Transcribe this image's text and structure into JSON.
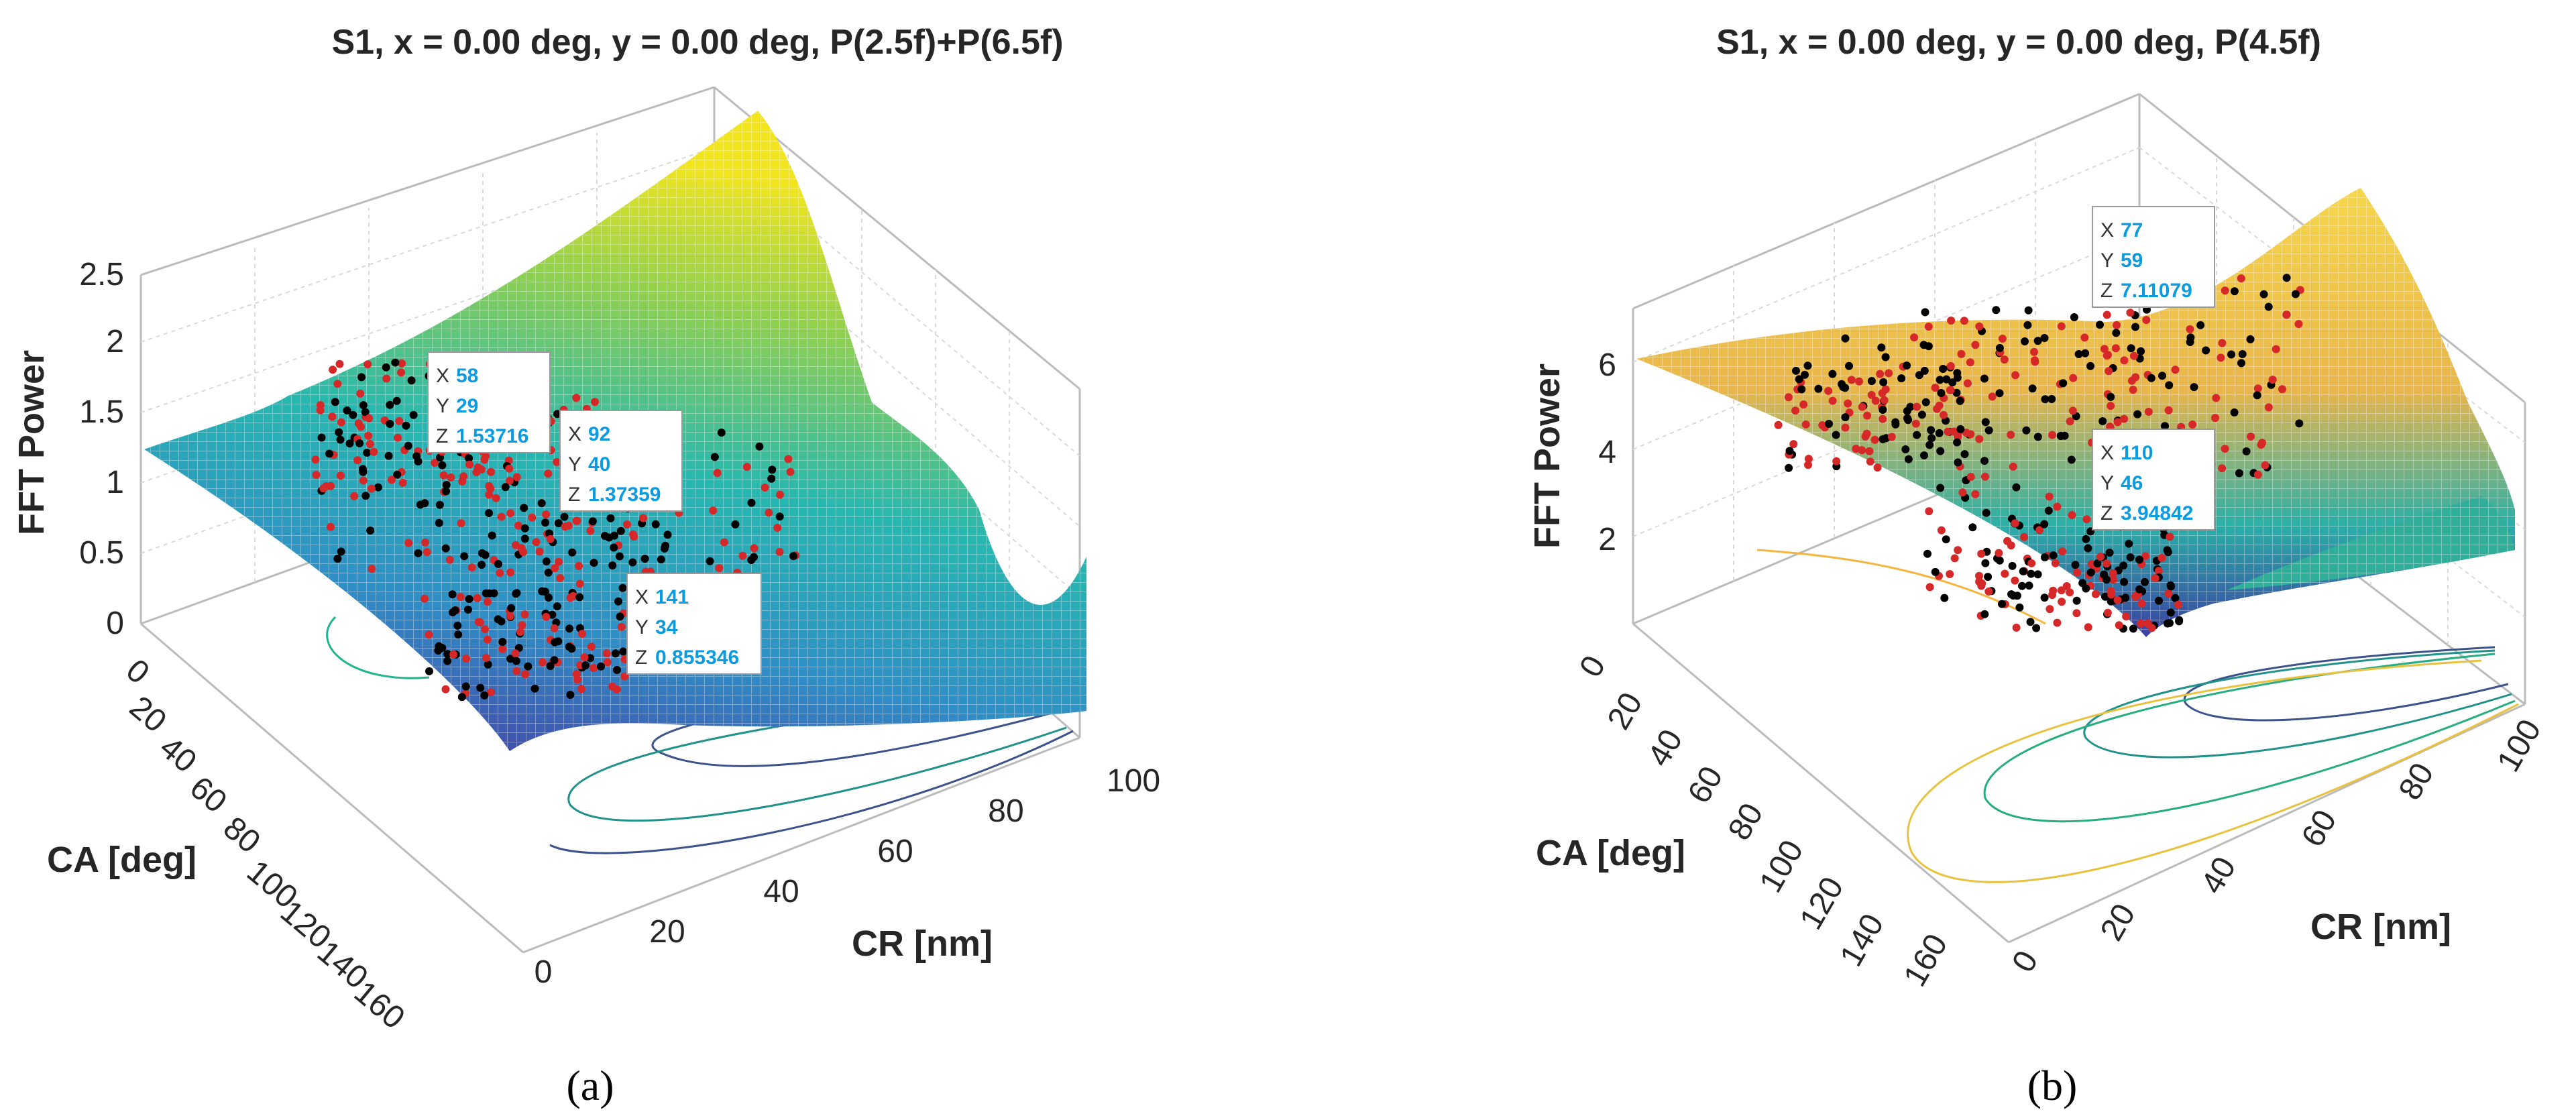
{
  "chart_data": [
    {
      "type": "surface",
      "panel": "a",
      "caption": "(a)",
      "title": "S1, x = 0.00 deg, y = 0.00 deg, P(2.5f)+P(6.5f)",
      "xlabel": "CR [nm]",
      "ylabel": "CA [deg]",
      "zlabel": "FFT Power",
      "x_ticks": [
        "0",
        "20",
        "40",
        "60",
        "80",
        "100"
      ],
      "y_ticks": [
        "0",
        "20",
        "40",
        "60",
        "80",
        "100",
        "120",
        "140",
        "160"
      ],
      "z_ticks": [
        "0",
        "0.5",
        "1",
        "1.5",
        "2",
        "2.5"
      ],
      "xlim": [
        0,
        100
      ],
      "ylim": [
        0,
        180
      ],
      "zlim": [
        0,
        2.6
      ],
      "colormap": [
        "#440154",
        "#3b528b",
        "#21918c",
        "#5ec962",
        "#fde725"
      ],
      "scatter_colors": [
        "#d62828",
        "#000000"
      ],
      "datatips": [
        {
          "X": "58",
          "Y": "29",
          "Z": "1.53716"
        },
        {
          "X": "92",
          "Y": "40",
          "Z": "1.37359"
        },
        {
          "X": "141",
          "Y": "34",
          "Z": "0.855346"
        }
      ]
    },
    {
      "type": "surface",
      "panel": "b",
      "caption": "(b)",
      "title": "S1, x = 0.00 deg, y = 0.00 deg, P(4.5f)",
      "xlabel": "CR [nm]",
      "ylabel": "CA [deg]",
      "zlabel": "FFT Power",
      "x_ticks": [
        "0",
        "20",
        "40",
        "60",
        "80",
        "100"
      ],
      "y_ticks": [
        "0",
        "20",
        "40",
        "60",
        "80",
        "100",
        "120",
        "140",
        "160"
      ],
      "z_ticks": [
        "2",
        "4",
        "6"
      ],
      "xlim": [
        0,
        100
      ],
      "ylim": [
        0,
        180
      ],
      "zlim": [
        0,
        7.2
      ],
      "colormap": [
        "#440154",
        "#3b528b",
        "#21918c",
        "#5ec962",
        "#fde725"
      ],
      "scatter_colors": [
        "#d62828",
        "#000000"
      ],
      "datatips": [
        {
          "X": "77",
          "Y": "59",
          "Z": "7.11079"
        },
        {
          "X": "110",
          "Y": "46",
          "Z": "3.94842"
        }
      ]
    }
  ]
}
